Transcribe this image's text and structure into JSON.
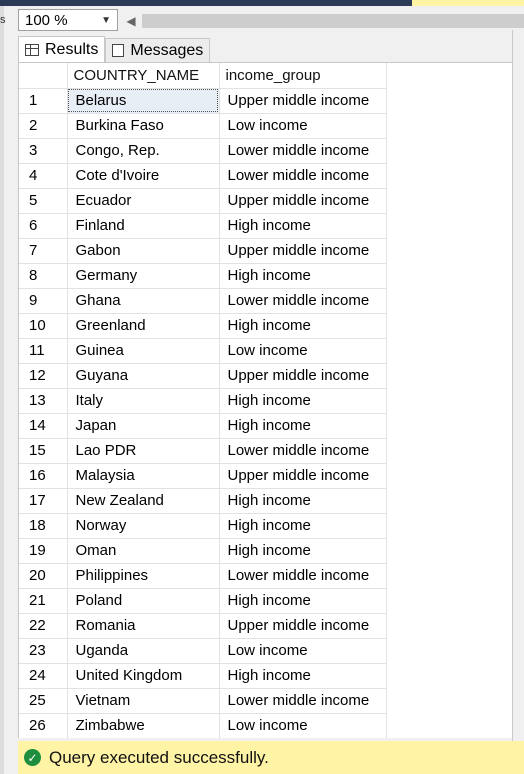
{
  "toolbar": {
    "zoom": "100 %"
  },
  "tabs": [
    {
      "label": "Results"
    },
    {
      "label": "Messages"
    }
  ],
  "grid": {
    "columns": [
      "COUNTRY_NAME",
      "income_group"
    ],
    "rows": [
      {
        "n": "1",
        "country": "Belarus",
        "income": "Upper middle income"
      },
      {
        "n": "2",
        "country": "Burkina Faso",
        "income": "Low income"
      },
      {
        "n": "3",
        "country": "Congo, Rep.",
        "income": "Lower middle income"
      },
      {
        "n": "4",
        "country": "Cote d'Ivoire",
        "income": "Lower middle income"
      },
      {
        "n": "5",
        "country": "Ecuador",
        "income": "Upper middle income"
      },
      {
        "n": "6",
        "country": "Finland",
        "income": "High income"
      },
      {
        "n": "7",
        "country": "Gabon",
        "income": "Upper middle income"
      },
      {
        "n": "8",
        "country": "Germany",
        "income": "High income"
      },
      {
        "n": "9",
        "country": "Ghana",
        "income": "Lower middle income"
      },
      {
        "n": "10",
        "country": "Greenland",
        "income": "High income"
      },
      {
        "n": "11",
        "country": "Guinea",
        "income": "Low income"
      },
      {
        "n": "12",
        "country": "Guyana",
        "income": "Upper middle income"
      },
      {
        "n": "13",
        "country": "Italy",
        "income": "High income"
      },
      {
        "n": "14",
        "country": "Japan",
        "income": "High income"
      },
      {
        "n": "15",
        "country": "Lao PDR",
        "income": "Lower middle income"
      },
      {
        "n": "16",
        "country": "Malaysia",
        "income": "Upper middle income"
      },
      {
        "n": "17",
        "country": "New Zealand",
        "income": "High income"
      },
      {
        "n": "18",
        "country": "Norway",
        "income": "High income"
      },
      {
        "n": "19",
        "country": "Oman",
        "income": "High income"
      },
      {
        "n": "20",
        "country": "Philippines",
        "income": "Lower middle income"
      },
      {
        "n": "21",
        "country": "Poland",
        "income": "High income"
      },
      {
        "n": "22",
        "country": "Romania",
        "income": "Upper middle income"
      },
      {
        "n": "23",
        "country": "Uganda",
        "income": "Low income"
      },
      {
        "n": "24",
        "country": "United Kingdom",
        "income": "High income"
      },
      {
        "n": "25",
        "country": "Vietnam",
        "income": "Lower middle income"
      },
      {
        "n": "26",
        "country": "Zimbabwe",
        "income": "Low income"
      }
    ]
  },
  "status": {
    "text": "Query executed successfully.",
    "icon": "check-icon"
  }
}
